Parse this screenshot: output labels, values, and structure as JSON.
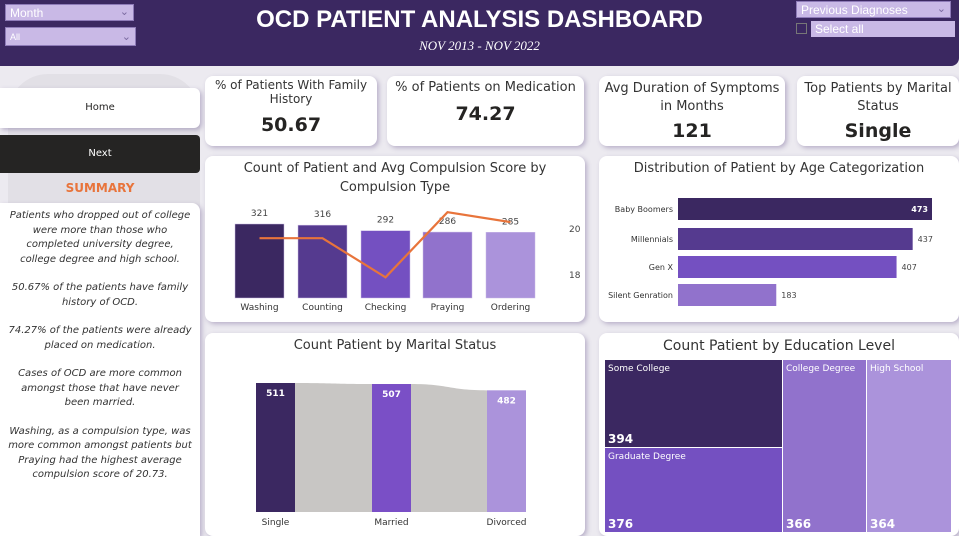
{
  "header": {
    "title": "OCD PATIENT ANALYSIS DASHBOARD",
    "subtitle": "NOV  2013 - NOV 2022"
  },
  "filters": {
    "month_label": "Month",
    "month_value": "All",
    "diagnoses_label": "Previous Diagnoses",
    "select_all": "Select all"
  },
  "nav": {
    "home": "Home",
    "next": "Next"
  },
  "summary": {
    "title": "SUMMARY",
    "paragraphs": [
      "Patients who dropped out of college were more than  those who completed university degree, college degree and high school.",
      "50.67% of the patients have family history of OCD.",
      "74.27% of the patients were already placed on medication.",
      "Cases of OCD are more common amongst those that have never been married.",
      "Washing, as a compulsion type, was more common amongst patients but Praying had the highest average compulsion score of  20.73."
    ]
  },
  "kpis": [
    {
      "label": "% of Patients With Family History",
      "value": "50.67"
    },
    {
      "label": "% of Patients on Medication",
      "value": "74.27"
    },
    {
      "label": "Avg Duration of Symptoms in Months",
      "value": "121"
    },
    {
      "label": "Top Patients by Marital Status",
      "value": "Single"
    }
  ],
  "colors": {
    "header": "#3b2861",
    "accent": "#e8743b",
    "purples": [
      "#3b2861",
      "#553a8f",
      "#7450c1",
      "#9172cc",
      "#ab93db"
    ]
  },
  "chart_data": [
    {
      "type": "bar",
      "title": "Count of Patient and Avg Compulsion Score by Compulsion Type",
      "categories": [
        "Washing",
        "Counting",
        "Checking",
        "Praying",
        "Ordering"
      ],
      "series": [
        {
          "kind": "bar",
          "values": [
            321,
            316,
            292,
            286,
            285
          ]
        },
        {
          "kind": "line",
          "values": [
            19.6,
            19.6,
            17.9,
            20.73,
            20.3
          ]
        }
      ],
      "secondary_ticks": [
        "20",
        "18"
      ]
    },
    {
      "type": "bar",
      "orientation": "horizontal",
      "title": "Distribution of Patient by Age Categorization",
      "categories": [
        "Baby Boomers",
        "Millennials",
        "Gen X",
        "Silent Genration"
      ],
      "values": [
        473,
        437,
        407,
        183
      ]
    },
    {
      "type": "bar",
      "subtype": "ribbon",
      "title": "Count Patient by Marital Status",
      "categories": [
        "Single",
        "Married",
        "Divorced"
      ],
      "values": [
        511,
        507,
        482
      ]
    },
    {
      "type": "treemap",
      "title": "Count Patient by Education Level",
      "categories": [
        "Some College",
        "Graduate Degree",
        "College Degree",
        "High School"
      ],
      "values": [
        394,
        376,
        366,
        364
      ]
    }
  ]
}
